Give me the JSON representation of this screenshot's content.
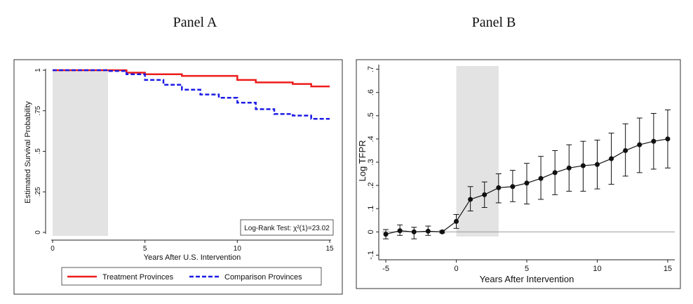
{
  "panel_a_title": "Panel A",
  "panel_b_title": "Panel B",
  "colors": {
    "treatment": "#ee1c1c",
    "comparison": "#1c1ce6",
    "shade": "#e3e3e3",
    "markers": "#111111"
  },
  "chart_data": [
    {
      "type": "line",
      "title": "Panel A",
      "xlabel": "Years After U.S. Intervention",
      "ylabel": "Estimated Survival Probability",
      "xlim": [
        0,
        15
      ],
      "ylim": [
        0,
        1
      ],
      "x_ticks": [
        0,
        5,
        10,
        15
      ],
      "y_ticks": [
        0,
        0.25,
        0.5,
        0.75,
        1
      ],
      "y_tick_labels": [
        "0",
        ".25",
        ".5",
        ".75",
        "1"
      ],
      "shaded_region": [
        0,
        3
      ],
      "step": true,
      "annotation": "Log-Rank Test: χ²(1)=23.02",
      "legend_position": "bottom",
      "series": [
        {
          "name": "Treatment Provinces",
          "style": "solid",
          "x": [
            0,
            4,
            5,
            7,
            10,
            11,
            13,
            14,
            15
          ],
          "values": [
            1.0,
            0.985,
            0.975,
            0.965,
            0.94,
            0.925,
            0.915,
            0.9,
            0.9
          ]
        },
        {
          "name": "Comparison Provinces",
          "style": "dashed",
          "x": [
            0,
            3,
            4,
            5,
            6,
            7,
            8,
            9,
            10,
            11,
            12,
            13,
            14,
            15
          ],
          "values": [
            1.0,
            0.995,
            0.975,
            0.94,
            0.91,
            0.88,
            0.85,
            0.83,
            0.8,
            0.76,
            0.73,
            0.72,
            0.7,
            0.7
          ]
        }
      ]
    },
    {
      "type": "line",
      "title": "Panel B",
      "xlabel": "Years After Intervention",
      "ylabel": "Log TFPR",
      "xlim": [
        -5.5,
        15.5
      ],
      "ylim": [
        -0.12,
        0.72
      ],
      "x_ticks": [
        -5,
        0,
        5,
        10,
        15
      ],
      "y_ticks": [
        -0.1,
        0,
        0.1,
        0.2,
        0.3,
        0.4,
        0.5,
        0.6,
        0.7
      ],
      "y_tick_labels": [
        "-.1",
        "0",
        ".1",
        ".2",
        ".3",
        ".4",
        ".5",
        ".6",
        ".7"
      ],
      "shaded_region": [
        0,
        3
      ],
      "reference_line": 0,
      "x": [
        -5,
        -4,
        -3,
        -2,
        -1,
        0,
        1,
        2,
        3,
        4,
        5,
        6,
        7,
        8,
        9,
        10,
        11,
        12,
        13,
        14,
        15
      ],
      "values": [
        -0.01,
        0.005,
        0.0,
        0.003,
        0.0,
        0.045,
        0.14,
        0.16,
        0.19,
        0.195,
        0.21,
        0.23,
        0.255,
        0.275,
        0.285,
        0.29,
        0.315,
        0.35,
        0.375,
        0.39,
        0.4
      ],
      "ci_low": [
        -0.03,
        -0.015,
        -0.03,
        -0.015,
        -0.005,
        0.015,
        0.09,
        0.105,
        0.125,
        0.13,
        0.12,
        0.14,
        0.16,
        0.175,
        0.175,
        0.185,
        0.205,
        0.24,
        0.255,
        0.27,
        0.275
      ],
      "ci_high": [
        0.01,
        0.03,
        0.02,
        0.025,
        0.005,
        0.075,
        0.195,
        0.215,
        0.25,
        0.265,
        0.295,
        0.325,
        0.35,
        0.375,
        0.39,
        0.395,
        0.425,
        0.465,
        0.49,
        0.51,
        0.525
      ]
    }
  ]
}
